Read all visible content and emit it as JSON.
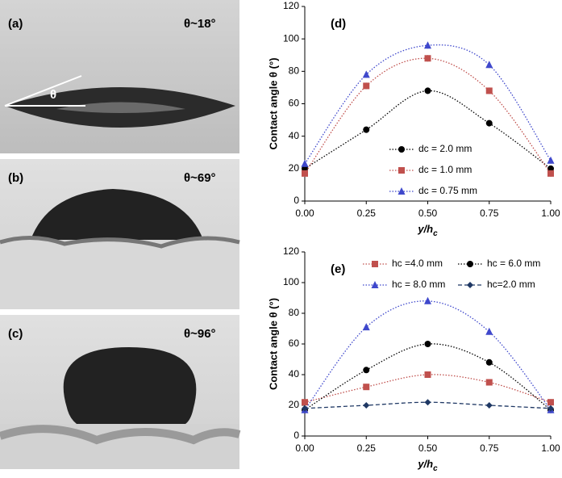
{
  "photos": [
    {
      "label": "(a)",
      "angle": "θ~18°",
      "theta": "θ"
    },
    {
      "label": "(b)",
      "angle": "θ~69°"
    },
    {
      "label": "(c)",
      "angle": "θ~96°"
    }
  ],
  "chart_data": [
    {
      "type": "line",
      "panel": "(d)",
      "ylabel": "Contact angle θ (°)",
      "xlabel": "y/h",
      "xlabel_sub": "c",
      "x": [
        0,
        0.25,
        0.5,
        0.75,
        1
      ],
      "xlim": [
        0,
        1
      ],
      "xticks": [
        {
          "value": 0,
          "label": "0.00"
        },
        {
          "value": 0.25,
          "label": "0.25"
        },
        {
          "value": 0.5,
          "label": "0.50"
        },
        {
          "value": 0.75,
          "label": "0.75"
        },
        {
          "value": 1,
          "label": "1.00"
        }
      ],
      "ylim": [
        0,
        120
      ],
      "yticks": [
        0,
        20,
        40,
        60,
        80,
        100,
        120
      ],
      "grid": false,
      "legend": "lower center",
      "series": [
        {
          "name": "dc = 2.0 mm",
          "color": "#000000",
          "marker": "circle",
          "dash": "dotted",
          "values": [
            20,
            44,
            68,
            48,
            20
          ],
          "errors": [
            2,
            2,
            2,
            2,
            2
          ]
        },
        {
          "name": "dc = 1.0 mm",
          "color": "#c0504d",
          "marker": "square",
          "dash": "dotted",
          "values": [
            17,
            71,
            88,
            68,
            17
          ],
          "errors": [
            2,
            2,
            2,
            2,
            2
          ]
        },
        {
          "name": "dc = 0.75 mm",
          "color": "#3f48cc",
          "marker": "triangle",
          "dash": "dotted",
          "values": [
            23,
            78,
            96,
            84,
            25
          ],
          "errors": [
            2,
            2,
            2,
            2,
            2
          ]
        }
      ]
    },
    {
      "type": "line",
      "panel": "(e)",
      "ylabel": "Contact angle θ (°)",
      "xlabel": "y/h",
      "xlabel_sub": "c",
      "x": [
        0,
        0.25,
        0.5,
        0.75,
        1
      ],
      "xlim": [
        0,
        1
      ],
      "xticks": [
        {
          "value": 0,
          "label": "0.00"
        },
        {
          "value": 0.25,
          "label": "0.25"
        },
        {
          "value": 0.5,
          "label": "0.50"
        },
        {
          "value": 0.75,
          "label": "0.75"
        },
        {
          "value": 1,
          "label": "1.00"
        }
      ],
      "ylim": [
        0,
        120
      ],
      "yticks": [
        0,
        20,
        40,
        60,
        80,
        100,
        120
      ],
      "grid": false,
      "legend": "upper center",
      "series": [
        {
          "name": "hc =4.0 mm",
          "color": "#c0504d",
          "marker": "square",
          "dash": "dotted",
          "values": [
            22,
            32,
            40,
            35,
            22
          ],
          "errors": [
            2,
            2,
            2,
            2,
            2
          ]
        },
        {
          "name": "hc = 6.0 mm",
          "color": "#000000",
          "marker": "circle",
          "dash": "dotted",
          "values": [
            17,
            43,
            60,
            48,
            17
          ],
          "errors": [
            2,
            2,
            2,
            2,
            2
          ]
        },
        {
          "name": "hc = 8.0 mm",
          "color": "#3f48cc",
          "marker": "triangle",
          "dash": "dotted",
          "values": [
            17,
            71,
            88,
            68,
            17
          ],
          "errors": [
            2,
            2,
            2,
            2,
            2
          ]
        },
        {
          "name": "hc=2.0 mm",
          "color": "#1f3864",
          "marker": "diamond",
          "dash": "dashed",
          "values": [
            18,
            20,
            22,
            20,
            18
          ],
          "errors": [
            1,
            1,
            1,
            1,
            1
          ]
        }
      ]
    }
  ]
}
